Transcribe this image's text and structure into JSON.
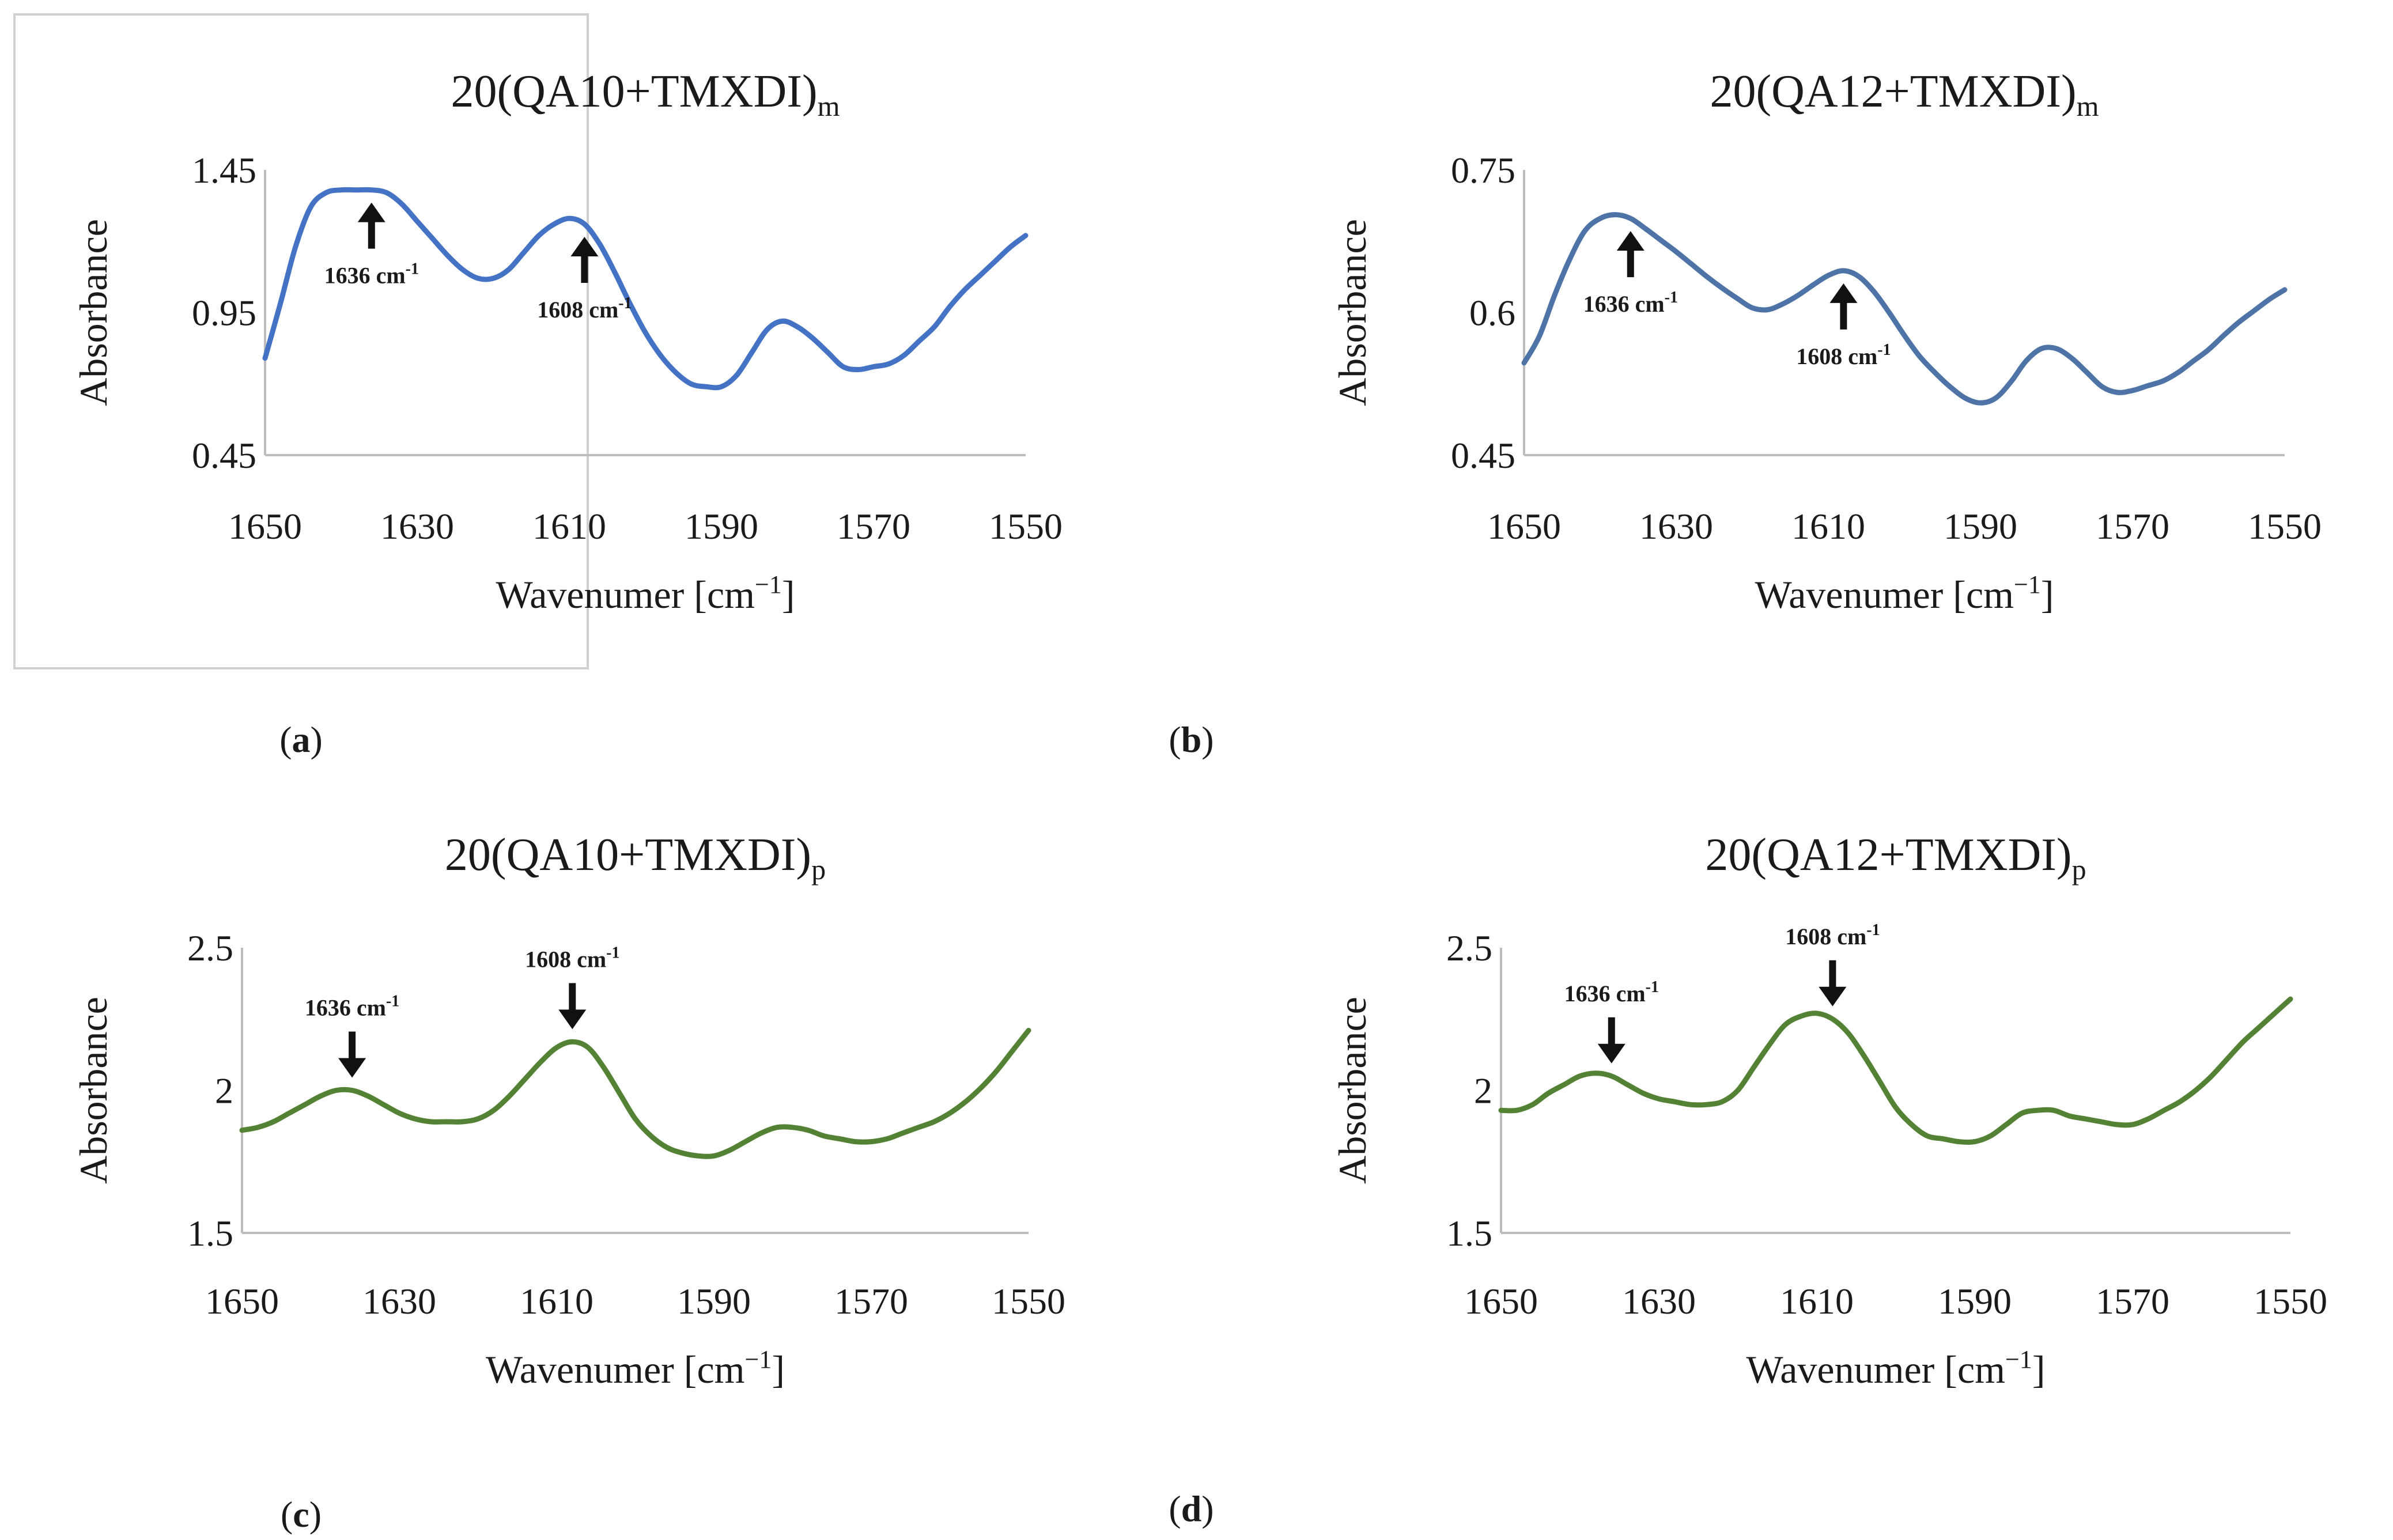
{
  "chart_data": [
    {
      "type": "line",
      "panel": "(a)",
      "caption_letter": "a",
      "title": "20(QA10+TMXDI)",
      "title_subscript": "m",
      "xlabel": "Wavenumer [cm",
      "xlabel_sup": "−1",
      "xlabel_close": "]",
      "ylabel": "Absorbance",
      "xlim": [
        1650,
        1550
      ],
      "ylim": [
        0.45,
        1.45
      ],
      "xticks": [
        "1650",
        "1630",
        "1610",
        "1590",
        "1570",
        "1550"
      ],
      "yticks": [
        "1.45",
        "0.95",
        "0.45"
      ],
      "color": "#4472c4",
      "series": [
        {
          "name": "20(QA10+TMXDI)m",
          "x": [
            1650,
            1648,
            1646,
            1644,
            1642,
            1640,
            1638,
            1636,
            1634,
            1632,
            1630,
            1628,
            1626,
            1624,
            1622,
            1620,
            1618,
            1616,
            1614,
            1612,
            1610,
            1608,
            1606,
            1604,
            1602,
            1600,
            1598,
            1596,
            1594,
            1592,
            1590,
            1588,
            1586,
            1584,
            1582,
            1580,
            1578,
            1576,
            1574,
            1572,
            1570,
            1568,
            1566,
            1564,
            1562,
            1560,
            1558,
            1556,
            1554,
            1552,
            1550
          ],
          "y": [
            0.79,
            0.98,
            1.18,
            1.32,
            1.37,
            1.38,
            1.38,
            1.38,
            1.37,
            1.33,
            1.27,
            1.21,
            1.15,
            1.1,
            1.07,
            1.07,
            1.1,
            1.16,
            1.22,
            1.26,
            1.28,
            1.26,
            1.19,
            1.09,
            0.98,
            0.88,
            0.8,
            0.74,
            0.7,
            0.69,
            0.69,
            0.73,
            0.81,
            0.89,
            0.92,
            0.9,
            0.86,
            0.81,
            0.76,
            0.75,
            0.76,
            0.77,
            0.8,
            0.85,
            0.9,
            0.97,
            1.03,
            1.08,
            1.13,
            1.18,
            1.22
          ]
        }
      ],
      "annotations": [
        {
          "label": "1636 cm",
          "sup": "-1",
          "x": 1636,
          "direction": "up"
        },
        {
          "label": "1608 cm",
          "sup": "-1",
          "x": 1608,
          "direction": "up"
        }
      ]
    },
    {
      "type": "line",
      "panel": "(b)",
      "caption_letter": "b",
      "title": "20(QA12+TMXDI)",
      "title_subscript": "m",
      "xlabel": "Wavenumer [cm",
      "xlabel_sup": "−1",
      "xlabel_close": "]",
      "ylabel": "Absorbance",
      "xlim": [
        1650,
        1550
      ],
      "ylim": [
        0.45,
        0.75
      ],
      "xticks": [
        "1650",
        "1630",
        "1610",
        "1590",
        "1570",
        "1550"
      ],
      "yticks": [
        "0.75",
        "0.6",
        "0.45"
      ],
      "color": "#4e73a6",
      "series": [
        {
          "name": "20(QA12+TMXDI)m",
          "x": [
            1650,
            1648,
            1646,
            1644,
            1642,
            1640,
            1638,
            1636,
            1634,
            1632,
            1630,
            1628,
            1626,
            1624,
            1622,
            1620,
            1618,
            1616,
            1614,
            1612,
            1610,
            1608,
            1606,
            1604,
            1602,
            1600,
            1598,
            1596,
            1594,
            1592,
            1590,
            1588,
            1586,
            1584,
            1582,
            1580,
            1578,
            1576,
            1574,
            1572,
            1570,
            1568,
            1566,
            1564,
            1562,
            1560,
            1558,
            1556,
            1554,
            1552,
            1550
          ],
          "y": [
            0.547,
            0.575,
            0.618,
            0.656,
            0.686,
            0.699,
            0.703,
            0.699,
            0.688,
            0.676,
            0.664,
            0.651,
            0.638,
            0.626,
            0.615,
            0.605,
            0.603,
            0.609,
            0.618,
            0.629,
            0.639,
            0.644,
            0.638,
            0.622,
            0.6,
            0.576,
            0.554,
            0.537,
            0.522,
            0.51,
            0.505,
            0.51,
            0.527,
            0.549,
            0.562,
            0.562,
            0.552,
            0.537,
            0.522,
            0.516,
            0.518,
            0.523,
            0.528,
            0.537,
            0.549,
            0.561,
            0.576,
            0.59,
            0.602,
            0.614,
            0.624
          ]
        }
      ],
      "annotations": [
        {
          "label": "1636 cm",
          "sup": "-1",
          "x": 1636,
          "direction": "up"
        },
        {
          "label": "1608 cm",
          "sup": "-1",
          "x": 1608,
          "direction": "up"
        }
      ]
    },
    {
      "type": "line",
      "panel": "(c)",
      "caption_letter": "c",
      "title": "20(QA10+TMXDI)",
      "title_subscript": "p",
      "xlabel": "Wavenumer [cm",
      "xlabel_sup": "−1",
      "xlabel_close": "]",
      "ylabel": "Absorbance",
      "xlim": [
        1650,
        1550
      ],
      "ylim": [
        1.5,
        2.5
      ],
      "xticks": [
        "1650",
        "1630",
        "1610",
        "1590",
        "1570",
        "1550"
      ],
      "yticks": [
        "2.5",
        "2",
        "1.5"
      ],
      "color": "#548235",
      "series": [
        {
          "name": "20(QA10+TMXDI)p",
          "x": [
            1650,
            1648,
            1646,
            1644,
            1642,
            1640,
            1638,
            1636,
            1634,
            1632,
            1630,
            1628,
            1626,
            1624,
            1622,
            1620,
            1618,
            1616,
            1614,
            1612,
            1610,
            1608,
            1606,
            1604,
            1602,
            1600,
            1598,
            1596,
            1594,
            1592,
            1590,
            1588,
            1586,
            1584,
            1582,
            1580,
            1578,
            1576,
            1574,
            1572,
            1570,
            1568,
            1566,
            1564,
            1562,
            1560,
            1558,
            1556,
            1554,
            1552,
            1550
          ],
          "y": [
            1.86,
            1.87,
            1.89,
            1.92,
            1.95,
            1.98,
            2.0,
            2.0,
            1.98,
            1.95,
            1.92,
            1.9,
            1.89,
            1.89,
            1.89,
            1.9,
            1.93,
            1.98,
            2.04,
            2.1,
            2.15,
            2.17,
            2.15,
            2.08,
            1.99,
            1.9,
            1.84,
            1.8,
            1.78,
            1.77,
            1.77,
            1.79,
            1.82,
            1.85,
            1.87,
            1.87,
            1.86,
            1.84,
            1.83,
            1.82,
            1.82,
            1.83,
            1.85,
            1.87,
            1.89,
            1.92,
            1.96,
            2.01,
            2.07,
            2.14,
            2.21
          ]
        }
      ],
      "annotations": [
        {
          "label": "1636 cm",
          "sup": "-1",
          "x": 1636,
          "direction": "down"
        },
        {
          "label": "1608 cm",
          "sup": "-1",
          "x": 1608,
          "direction": "down"
        }
      ]
    },
    {
      "type": "line",
      "panel": "(d)",
      "caption_letter": "d",
      "title": "20(QA12+TMXDI)",
      "title_subscript": "p",
      "xlabel": "Wavenumer [cm",
      "xlabel_sup": "−1",
      "xlabel_close": "]",
      "ylabel": "Absorbance",
      "xlim": [
        1650,
        1550
      ],
      "ylim": [
        1.5,
        2.5
      ],
      "xticks": [
        "1650",
        "1630",
        "1610",
        "1590",
        "1570",
        "1550"
      ],
      "yticks": [
        "2.5",
        "2",
        "1.5"
      ],
      "color": "#548235",
      "series": [
        {
          "name": "20(QA12+TMXDI)p",
          "x": [
            1650,
            1648,
            1646,
            1644,
            1642,
            1640,
            1638,
            1636,
            1634,
            1632,
            1630,
            1628,
            1626,
            1624,
            1622,
            1620,
            1618,
            1616,
            1614,
            1612,
            1610,
            1608,
            1606,
            1604,
            1602,
            1600,
            1598,
            1596,
            1594,
            1592,
            1590,
            1588,
            1586,
            1584,
            1582,
            1580,
            1578,
            1576,
            1574,
            1572,
            1570,
            1568,
            1566,
            1564,
            1562,
            1560,
            1558,
            1556,
            1554,
            1552,
            1550
          ],
          "y": [
            1.93,
            1.93,
            1.95,
            1.99,
            2.02,
            2.05,
            2.06,
            2.05,
            2.02,
            1.99,
            1.97,
            1.96,
            1.95,
            1.95,
            1.96,
            2.0,
            2.08,
            2.16,
            2.23,
            2.26,
            2.27,
            2.25,
            2.2,
            2.12,
            2.03,
            1.94,
            1.88,
            1.84,
            1.83,
            1.82,
            1.82,
            1.84,
            1.88,
            1.92,
            1.93,
            1.93,
            1.91,
            1.9,
            1.89,
            1.88,
            1.88,
            1.9,
            1.93,
            1.96,
            2.0,
            2.05,
            2.11,
            2.17,
            2.22,
            2.27,
            2.32
          ]
        }
      ],
      "annotations": [
        {
          "label": "1636 cm",
          "sup": "-1",
          "x": 1636,
          "direction": "down"
        },
        {
          "label": "1608 cm",
          "sup": "-1",
          "x": 1608,
          "direction": "down"
        }
      ]
    }
  ]
}
